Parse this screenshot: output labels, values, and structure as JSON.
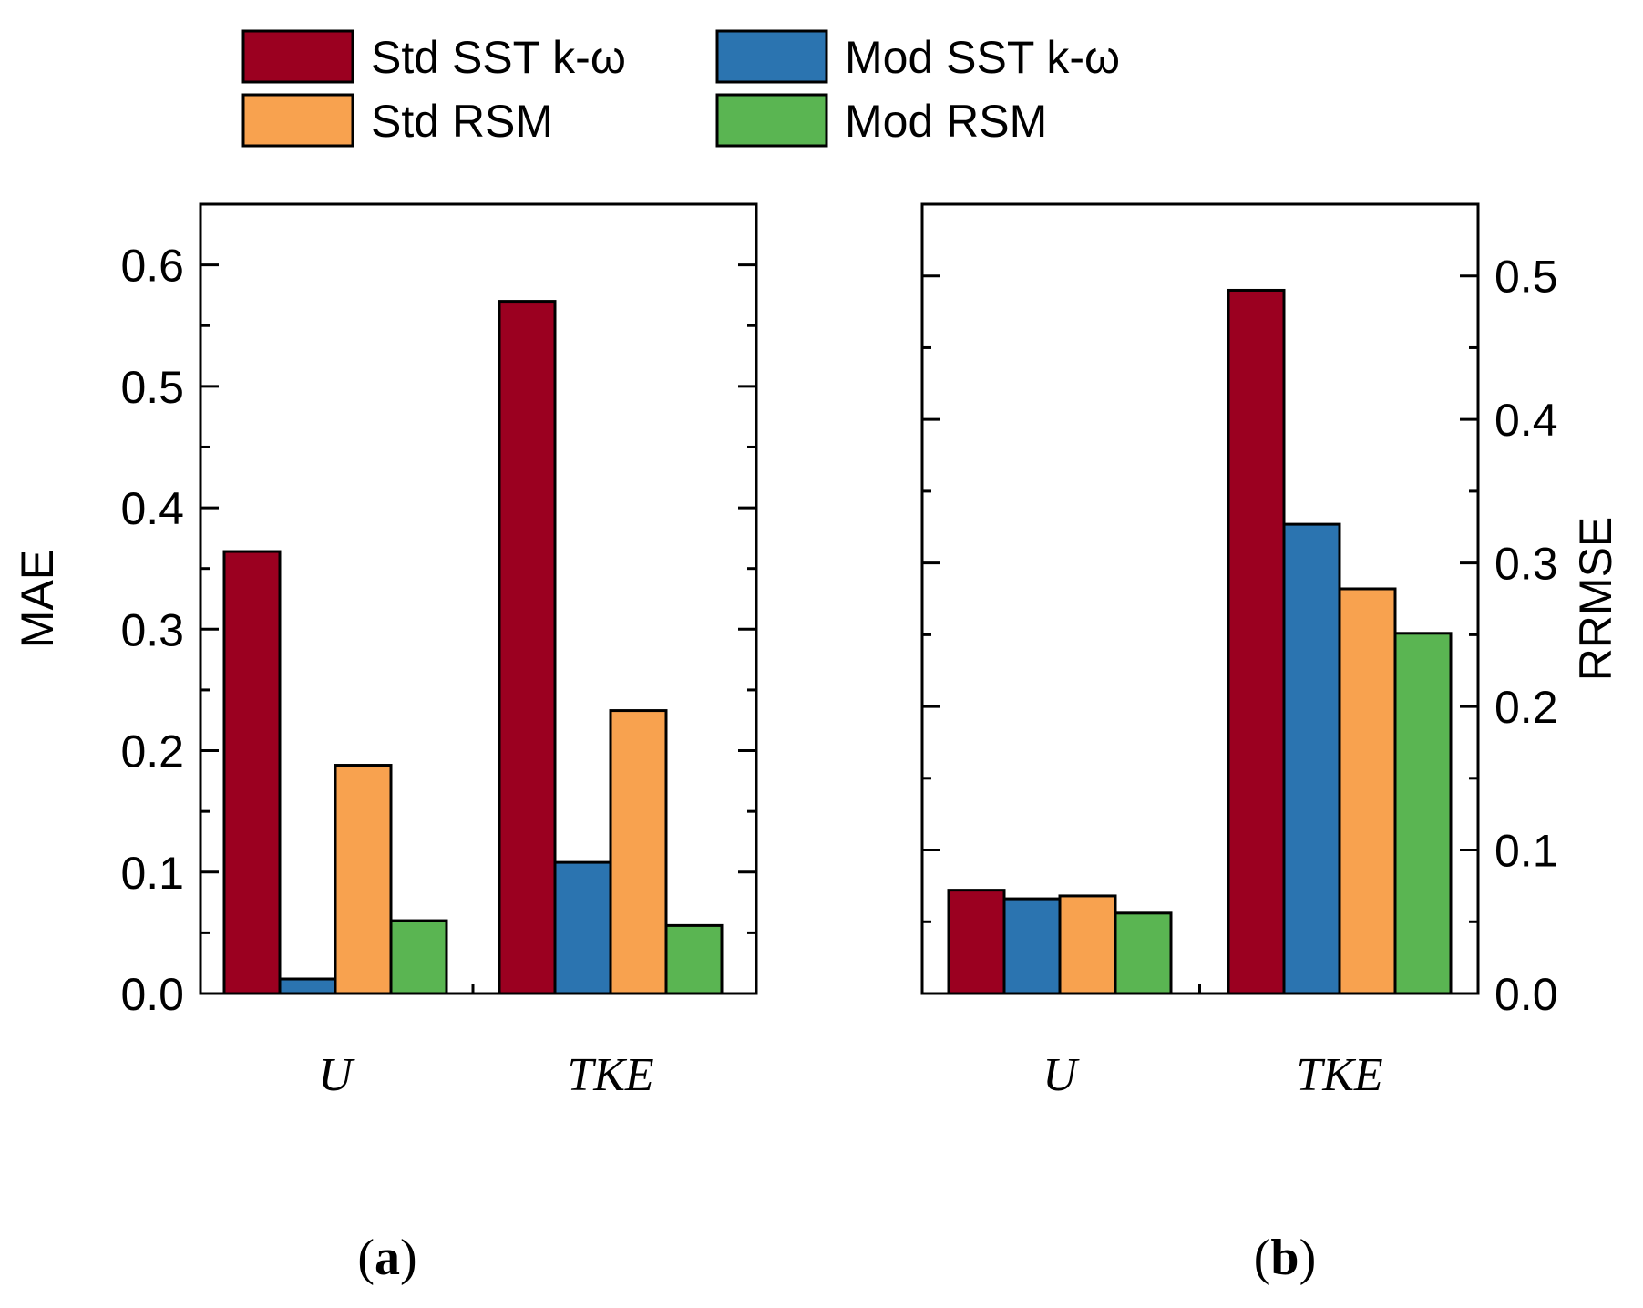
{
  "legend": {
    "entries": [
      {
        "label": "Std SST k-ω",
        "color": "#9b0020"
      },
      {
        "label": "Mod SST k-ω",
        "color": "#2b74b0"
      },
      {
        "label": "Std RSM",
        "color": "#f8a24f"
      },
      {
        "label": "Mod RSM",
        "color": "#5ab552"
      }
    ]
  },
  "chart_data": [
    {
      "type": "bar",
      "panel": "(a)",
      "panel_letter": "a",
      "ylabel": "MAE",
      "categories": [
        "U",
        "TKE"
      ],
      "ylim": [
        0,
        0.65
      ],
      "yticks": [
        "0.0",
        "0.1",
        "0.2",
        "0.3",
        "0.4",
        "0.5",
        "0.6"
      ],
      "series": [
        {
          "name": "Std SST k-ω",
          "color": "#9b0020",
          "values": [
            0.364,
            0.57
          ]
        },
        {
          "name": "Mod SST k-ω",
          "color": "#2b74b0",
          "values": [
            0.012,
            0.108
          ]
        },
        {
          "name": "Std RSM",
          "color": "#f8a24f",
          "values": [
            0.188,
            0.233
          ]
        },
        {
          "name": "Mod RSM",
          "color": "#5ab552",
          "values": [
            0.06,
            0.056
          ]
        }
      ]
    },
    {
      "type": "bar",
      "panel": "(b)",
      "panel_letter": "b",
      "ylabel": "RRMSE",
      "categories": [
        "U",
        "TKE"
      ],
      "ylim": [
        0,
        0.55
      ],
      "yticks": [
        "0.0",
        "0.1",
        "0.2",
        "0.3",
        "0.4",
        "0.5"
      ],
      "series": [
        {
          "name": "Std SST k-ω",
          "color": "#9b0020",
          "values": [
            0.072,
            0.49
          ]
        },
        {
          "name": "Mod SST k-ω",
          "color": "#2b74b0",
          "values": [
            0.066,
            0.327
          ]
        },
        {
          "name": "Std RSM",
          "color": "#f8a24f",
          "values": [
            0.068,
            0.282
          ]
        },
        {
          "name": "Mod RSM",
          "color": "#5ab552",
          "values": [
            0.056,
            0.251
          ]
        }
      ]
    }
  ]
}
